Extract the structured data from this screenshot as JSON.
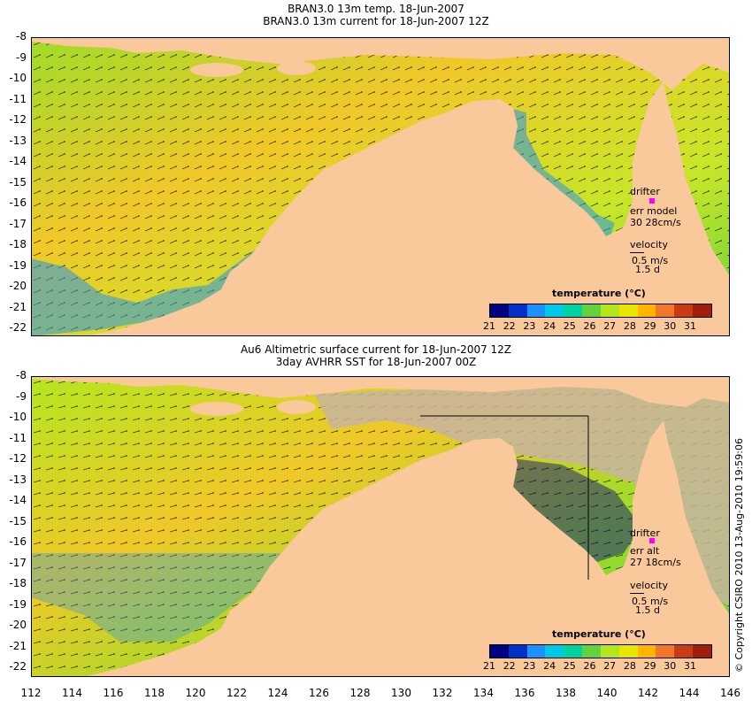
{
  "top_panel": {
    "title_line1": "BRAN3.0 13m temp. 18-Jun-2007",
    "title_line2": "BRAN3.0 13m current for 18-Jun-2007 12Z",
    "drifter_label": "drifter",
    "err_label": "err model",
    "err_values": "30 28cm/s",
    "velocity_label": "velocity",
    "velocity_scale": "0.5 m/s",
    "velocity_time": "1.5 d",
    "colorbar_title": "temperature (°C)"
  },
  "bottom_panel": {
    "title_line1": "Au6 Altimetric surface current for 18-Jun-2007 12Z",
    "title_line2": "3day AVHRR SST for 18-Jun-2007 00Z",
    "drifter_label": "drifter",
    "err_label": "err alt",
    "err_values": "27 18cm/s",
    "velocity_label": "velocity",
    "velocity_scale": "0.5 m/s",
    "velocity_time": "1.5 d",
    "colorbar_title": "temperature (°C)"
  },
  "latitude_ticks": [
    "-8",
    "-9",
    "-10",
    "-11",
    "-12",
    "-13",
    "-14",
    "-15",
    "-16",
    "-17",
    "-18",
    "-19",
    "-20",
    "-21",
    "-22"
  ],
  "longitude_ticks": [
    "112",
    "114",
    "116",
    "118",
    "120",
    "122",
    "124",
    "126",
    "128",
    "130",
    "132",
    "134",
    "136",
    "138",
    "140",
    "142",
    "144",
    "146"
  ],
  "colorbar_ticks": [
    "21",
    "22",
    "23",
    "24",
    "25",
    "26",
    "27",
    "28",
    "29",
    "30",
    "31"
  ],
  "colorbar_colors": [
    "#000080",
    "#0030c8",
    "#1e90ff",
    "#00c8e6",
    "#00d2a0",
    "#64d23c",
    "#b4e61e",
    "#e6e600",
    "#ffb400",
    "#f07828",
    "#c83c14",
    "#a01e0a"
  ],
  "colors": {
    "land": "#f9c89b",
    "ocean_warm": "#f0c828",
    "ocean_mid": "#a0dc28",
    "ocean_cool": "#2896e6",
    "cloud": "#c8b4a0",
    "contour": "#50e6e6"
  },
  "copyright": "© Copyright CSIRO 2010   13-Aug-2010 19:59:06"
}
